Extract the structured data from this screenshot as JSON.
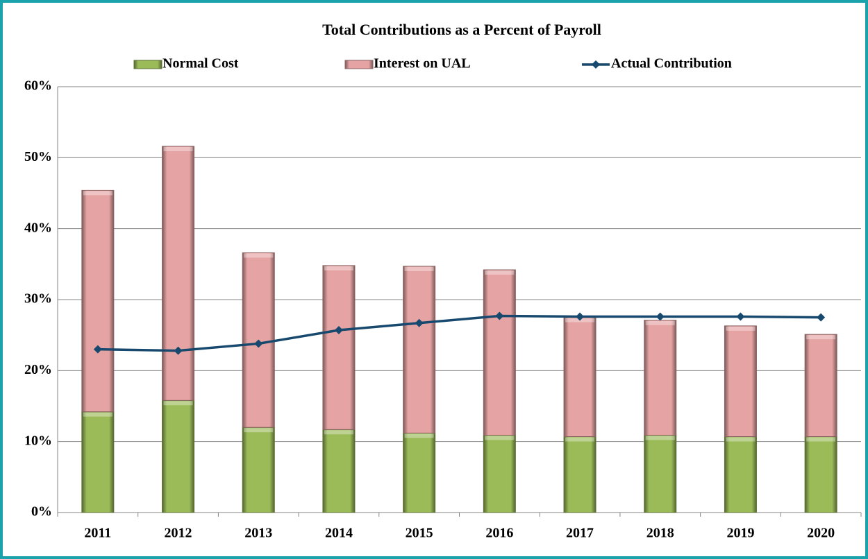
{
  "chart_data": {
    "type": "bar",
    "stacked": true,
    "title": "Total Contributions as a Percent of Payroll",
    "categories": [
      "2011",
      "2012",
      "2013",
      "2014",
      "2015",
      "2016",
      "2017",
      "2018",
      "2019",
      "2020"
    ],
    "series": [
      {
        "name": "Normal Cost",
        "type": "bar",
        "color": "#9bbb59",
        "values": [
          14.2,
          15.8,
          12.0,
          11.7,
          11.2,
          10.9,
          10.7,
          10.9,
          10.7,
          10.7
        ]
      },
      {
        "name": "Interest on UAL",
        "type": "bar",
        "color": "#e6a3a3",
        "values": [
          31.2,
          35.8,
          24.6,
          23.1,
          23.5,
          23.3,
          16.8,
          16.2,
          15.6,
          14.4
        ]
      },
      {
        "name": "Actual Contribution",
        "type": "line",
        "color": "#17496e",
        "values": [
          23.0,
          22.8,
          23.8,
          25.7,
          26.7,
          27.7,
          27.6,
          27.6,
          27.6,
          27.5
        ]
      }
    ],
    "ylim": [
      0,
      60
    ],
    "yticks": [
      {
        "value": 0,
        "label": "0%"
      },
      {
        "value": 10,
        "label": "10%"
      },
      {
        "value": 20,
        "label": "20%"
      },
      {
        "value": 30,
        "label": "30%"
      },
      {
        "value": 40,
        "label": "40%"
      },
      {
        "value": 50,
        "label": "50%"
      },
      {
        "value": 60,
        "label": "60%"
      }
    ],
    "grid": true,
    "legend": "top"
  }
}
